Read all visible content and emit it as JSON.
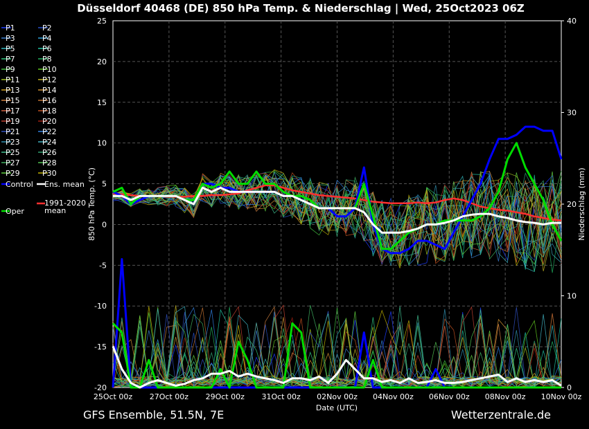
{
  "chart_data": {
    "type": "line",
    "title": "Düsseldorf 40468 (DE)  850 hPa Temp. & Niederschlag | Wed, 25Oct2023 06Z",
    "xlabel": "Date (UTC)",
    "ylabel": "850 hPa Temp. (°C)",
    "y2label": "Niederschlag (mm)",
    "ylim": [
      -20,
      25
    ],
    "y2lim": [
      0,
      40
    ],
    "yticks": [
      "25",
      "20",
      "15",
      "10",
      "5",
      "0",
      "-5",
      "-10",
      "-15",
      "-20"
    ],
    "y2ticks": [
      "40",
      "30",
      "20",
      "10",
      "0"
    ],
    "xticks": [
      "25Oct 00z",
      "27Oct 00z",
      "29Oct 00z",
      "31Oct 00z",
      "02Nov 00z",
      "04Nov 00z",
      "06Nov 00z",
      "08Nov 00z",
      "10Nov 00z"
    ],
    "grid": true,
    "legend_position": "left",
    "colors": {
      "control": "#0000ff",
      "oper": "#00dd00",
      "ens_mean": "#ffffff",
      "climate_mean": "#ff3030"
    },
    "legend": {
      "members": [
        "P1",
        "P2",
        "P3",
        "P4",
        "P5",
        "P6",
        "P7",
        "P8",
        "P9",
        "P10",
        "P11",
        "P12",
        "P13",
        "P14",
        "P15",
        "P16",
        "P17",
        "P18",
        "P19",
        "P20",
        "P21",
        "P22",
        "P23",
        "P24",
        "P25",
        "P26",
        "P27",
        "P28",
        "P29",
        "P30"
      ],
      "member_colors": [
        "#1e3cff",
        "#2850c8",
        "#3a7fd0",
        "#2e9fd8",
        "#30b8c0",
        "#20c0a0",
        "#30c880",
        "#20b060",
        "#40c040",
        "#60c820",
        "#a0c020",
        "#c0b020",
        "#d0a020",
        "#d09030",
        "#d08040",
        "#c07030",
        "#d06040",
        "#c05020",
        "#c04030",
        "#a02010",
        "#3050c0",
        "#3080e0",
        "#3090b0",
        "#40b0c0",
        "#40c090",
        "#30a070",
        "#40b060",
        "#50c050",
        "#60d040",
        "#c0b000"
      ],
      "control": "Control",
      "ens_mean": "Ens. mean",
      "climate_line1": "1991-2020",
      "climate_line2": "mean",
      "oper": "Oper"
    },
    "series": [
      {
        "name": "Control",
        "axis": "temp",
        "values": [
          4,
          3.5,
          2.5,
          3,
          3.5,
          3.5,
          3.5,
          3.5,
          3,
          2.5,
          5,
          5,
          4.5,
          4.5,
          4,
          4,
          4,
          4,
          4,
          3.5,
          3.5,
          3,
          2.5,
          2,
          2,
          1,
          1,
          2,
          7,
          0,
          -3,
          -3.5,
          -3.5,
          -3,
          -2,
          -2,
          -2.5,
          -3,
          -1,
          1,
          3,
          5,
          8,
          10.5,
          10.5,
          11,
          12,
          12,
          11.5,
          11.5,
          8
        ]
      },
      {
        "name": "Oper",
        "axis": "temp",
        "values": [
          4,
          4.5,
          2.5,
          3.5,
          3.5,
          3.5,
          3.5,
          3.5,
          3,
          3,
          5,
          4.5,
          5,
          6.5,
          5,
          5,
          6.5,
          5,
          5,
          4,
          3.5,
          3.5,
          3,
          2,
          2,
          2,
          2,
          2,
          5,
          1,
          -3,
          -3,
          -2,
          -1,
          -0.5,
          0,
          0,
          0.5,
          0.5,
          0.5,
          0.5,
          1,
          2,
          4,
          8,
          10,
          7,
          5,
          3,
          0,
          -2
        ]
      },
      {
        "name": "Ens. mean",
        "axis": "temp",
        "values": [
          3.5,
          3.5,
          3,
          3.5,
          3.5,
          3.5,
          3.5,
          3.5,
          3,
          2.5,
          4.5,
          4,
          4.5,
          4,
          4,
          4,
          4,
          4,
          4,
          3.5,
          3.5,
          3,
          2.5,
          2,
          2,
          2,
          2,
          2,
          1.5,
          0,
          -1,
          -1,
          -1,
          -0.8,
          -0.5,
          0,
          0,
          0.2,
          0.5,
          1,
          1.2,
          1.3,
          1.3,
          1,
          0.8,
          0.5,
          0.3,
          0.2,
          0,
          0.2,
          0.2
        ]
      },
      {
        "name": "1991-2020 mean",
        "axis": "temp",
        "values": [
          3.8,
          3.7,
          3.6,
          3.5,
          3.5,
          3.5,
          3.4,
          3.4,
          3.4,
          3.5,
          3.5,
          3.6,
          3.6,
          3.7,
          3.8,
          4.2,
          4.5,
          4.8,
          4.8,
          4.5,
          4.2,
          4,
          3.8,
          3.6,
          3.5,
          3.4,
          3.3,
          3.2,
          3,
          2.8,
          2.7,
          2.6,
          2.6,
          2.6,
          2.7,
          2.6,
          2.7,
          3,
          3.2,
          3,
          2.6,
          2.2,
          2,
          1.8,
          1.7,
          1.5,
          1.3,
          1,
          0.8,
          0.6,
          0.5
        ]
      },
      {
        "name": "Control precip",
        "axis": "precip",
        "values": [
          0,
          14,
          0,
          0,
          0,
          0,
          0,
          0,
          0,
          0,
          0,
          0,
          0,
          0,
          0,
          0,
          0,
          0,
          0,
          0,
          0,
          0,
          0,
          0,
          0,
          0,
          0,
          0,
          6,
          0,
          0,
          0,
          0,
          0,
          0,
          0,
          2,
          0,
          0,
          0,
          0,
          0,
          0,
          0,
          0,
          0,
          0,
          0,
          0,
          0,
          0
        ]
      },
      {
        "name": "Oper precip",
        "axis": "precip",
        "values": [
          7,
          6,
          0,
          0,
          3,
          0,
          0,
          0,
          0,
          0,
          0,
          0,
          2,
          0,
          5,
          3,
          0,
          0,
          0,
          0,
          7,
          6,
          0,
          0,
          0,
          0,
          0,
          0,
          0,
          3,
          0,
          0,
          0,
          0,
          0,
          0,
          0,
          0,
          0,
          0,
          0,
          0,
          0,
          0,
          0,
          0,
          0,
          0,
          0,
          0,
          0
        ]
      },
      {
        "name": "Ens. mean precip",
        "axis": "precip",
        "values": [
          4.5,
          2,
          0.5,
          0,
          0.5,
          0.8,
          0.5,
          0.2,
          0.4,
          0.8,
          1,
          1.5,
          1.5,
          1.8,
          1.2,
          1.5,
          1.2,
          1,
          0.8,
          0.5,
          1,
          1,
          0.8,
          1.2,
          0.5,
          1.5,
          3,
          2,
          1,
          1,
          0.6,
          0.8,
          0.5,
          1,
          0.5,
          0.6,
          0.8,
          0.5,
          0.5,
          0.6,
          0.8,
          1,
          1.2,
          1.4,
          0.6,
          1,
          0.6,
          0.8,
          0.6,
          0.8,
          0.2
        ]
      }
    ],
    "footer_left": "GFS Ensemble, 51.5N, 7E",
    "footer_right": "Wetterzentrale.de"
  }
}
